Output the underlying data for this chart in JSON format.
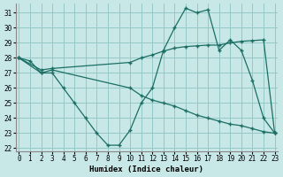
{
  "xlabel": "Humidex (Indice chaleur)",
  "bg_color": "#c8e8e8",
  "grid_color": "#96c8c8",
  "line_color": "#1a6e63",
  "xlim": [
    -0.3,
    23.3
  ],
  "ylim": [
    21.8,
    31.6
  ],
  "yticks": [
    22,
    23,
    24,
    25,
    26,
    27,
    28,
    29,
    30,
    31
  ],
  "xticks": [
    0,
    1,
    2,
    3,
    4,
    5,
    6,
    7,
    8,
    9,
    10,
    11,
    12,
    13,
    14,
    15,
    16,
    17,
    18,
    19,
    20,
    21,
    22,
    23
  ],
  "line1_x": [
    0,
    1,
    2,
    3,
    4,
    5,
    6,
    7,
    8,
    9,
    10,
    11,
    12,
    13,
    14,
    15,
    16,
    17,
    18,
    19,
    20,
    21,
    22,
    23
  ],
  "line1_y": [
    28.0,
    27.8,
    27.0,
    27.0,
    26.0,
    25.0,
    24.0,
    23.0,
    22.2,
    22.2,
    23.2,
    25.0,
    26.0,
    28.5,
    30.0,
    31.3,
    31.0,
    31.2,
    28.5,
    29.2,
    28.5,
    26.5,
    24.0,
    23.0
  ],
  "line2_x": [
    0,
    2,
    3,
    10,
    11,
    12,
    13,
    14,
    15,
    16,
    17,
    18,
    19,
    20,
    21,
    22,
    23
  ],
  "line2_y": [
    28.0,
    27.2,
    27.3,
    27.7,
    28.0,
    28.2,
    28.45,
    28.65,
    28.75,
    28.8,
    28.85,
    28.85,
    29.0,
    29.1,
    29.15,
    29.2,
    23.0
  ],
  "line3_x": [
    0,
    2,
    3,
    10,
    11,
    12,
    13,
    14,
    15,
    16,
    17,
    18,
    19,
    20,
    21,
    22,
    23
  ],
  "line3_y": [
    28.0,
    27.0,
    27.2,
    26.0,
    25.5,
    25.2,
    25.0,
    24.8,
    24.5,
    24.2,
    24.0,
    23.8,
    23.6,
    23.5,
    23.3,
    23.1,
    23.0
  ]
}
